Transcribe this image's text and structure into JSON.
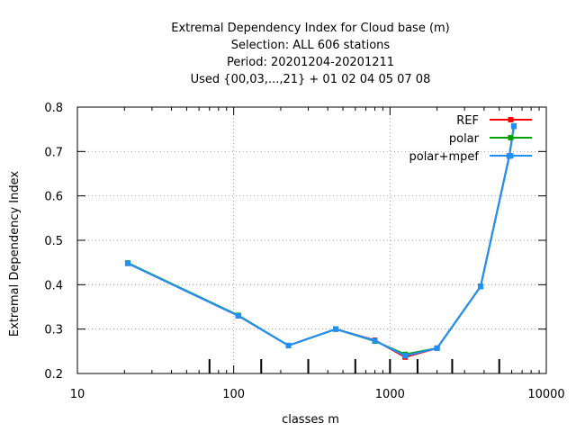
{
  "chart_data": {
    "type": "line",
    "title_lines": [
      "Extremal Dependency Index  for Cloud base (m)",
      "Selection: ALL    606 stations",
      "Period: 20201204-20201211",
      "Used {00,03,...,21} + 01 02 04 05 07 08"
    ],
    "xlabel": "classes m",
    "ylabel": "Extremal Dependency Index",
    "xscale": "log",
    "xlim": [
      10,
      10000
    ],
    "ylim": [
      0.2,
      0.8
    ],
    "xticks": [
      {
        "value": 10,
        "label": "10"
      },
      {
        "value": 100,
        "label": "100"
      },
      {
        "value": 1000,
        "label": "1000"
      },
      {
        "value": 10000,
        "label": "10000"
      }
    ],
    "yticks": [
      {
        "value": 0.2,
        "label": "0.2"
      },
      {
        "value": 0.3,
        "label": "0.3"
      },
      {
        "value": 0.4,
        "label": "0.4"
      },
      {
        "value": 0.5,
        "label": "0.5"
      },
      {
        "value": 0.6,
        "label": "0.6"
      },
      {
        "value": 0.7,
        "label": "0.7"
      },
      {
        "value": 0.8,
        "label": "0.8"
      }
    ],
    "grid": true,
    "legend_position": "top-right",
    "class_markers": [
      70,
      150,
      300,
      600,
      1000,
      1500,
      2500,
      5000
    ],
    "series": [
      {
        "name": "REF",
        "color": "#ff0000",
        "x": [
          21,
          107,
          224,
          450,
          800,
          1250,
          2000,
          3800,
          5800,
          6200
        ],
        "y": [
          0.448,
          0.33,
          0.263,
          0.3,
          0.275,
          0.237,
          0.257,
          0.396,
          0.69,
          0.757
        ]
      },
      {
        "name": "polar",
        "color": "#00a000",
        "x": [
          21,
          107,
          224,
          450,
          800,
          1250,
          2000,
          3800,
          5800,
          6200
        ],
        "y": [
          0.449,
          0.331,
          0.263,
          0.3,
          0.273,
          0.243,
          0.257,
          0.396,
          0.69,
          0.757
        ]
      },
      {
        "name": "polar+mpef",
        "color": "#1e90ff",
        "x": [
          21,
          107,
          224,
          450,
          800,
          1250,
          2000,
          3800,
          5800,
          6200
        ],
        "y": [
          0.448,
          0.33,
          0.263,
          0.3,
          0.274,
          0.24,
          0.257,
          0.396,
          0.69,
          0.757
        ]
      }
    ]
  }
}
